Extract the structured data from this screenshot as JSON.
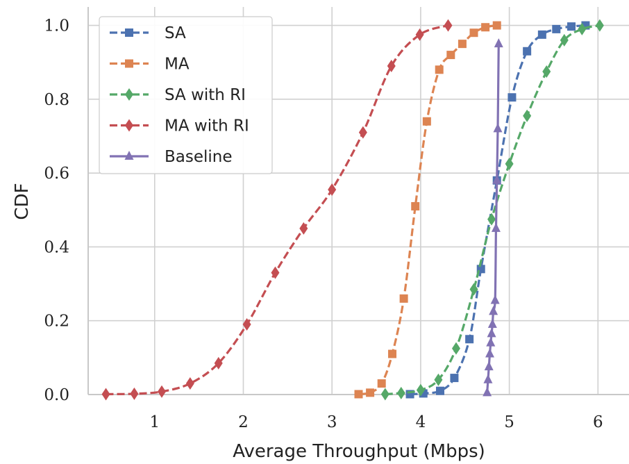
{
  "chart_data": {
    "type": "line",
    "xlabel": "Average Throughput (Mbps)",
    "ylabel": "CDF",
    "xlim": [
      0.25,
      6.35
    ],
    "ylim": [
      0.0,
      1.05
    ],
    "x_ticks": [
      1,
      2,
      3,
      4,
      5,
      6
    ],
    "y_ticks": [
      0.0,
      0.2,
      0.4,
      0.6,
      0.8,
      1.0
    ],
    "x_tick_labels": [
      "1",
      "2",
      "3",
      "4",
      "5",
      "6"
    ],
    "y_tick_labels": [
      "0.0",
      "0.2",
      "0.4",
      "0.6",
      "0.8",
      "1.0"
    ],
    "grid": true,
    "legend_position": "top-left",
    "series": [
      {
        "name": "SA",
        "color": "#4c72b0",
        "dash": true,
        "marker": "square",
        "x": [
          3.88,
          4.03,
          4.22,
          4.38,
          4.55,
          4.68,
          4.86,
          5.03,
          5.2,
          5.37,
          5.53,
          5.7,
          5.86
        ],
        "y": [
          0.001,
          0.003,
          0.01,
          0.045,
          0.15,
          0.34,
          0.58,
          0.805,
          0.93,
          0.975,
          0.99,
          0.997,
          1.0
        ]
      },
      {
        "name": "MA",
        "color": "#dd8452",
        "dash": true,
        "marker": "square",
        "x": [
          3.3,
          3.43,
          3.56,
          3.68,
          3.81,
          3.94,
          4.07,
          4.21,
          4.34,
          4.47,
          4.6,
          4.73,
          4.86
        ],
        "y": [
          0.001,
          0.005,
          0.03,
          0.11,
          0.26,
          0.51,
          0.74,
          0.88,
          0.92,
          0.95,
          0.98,
          0.995,
          1.0
        ]
      },
      {
        "name": "SA with RI",
        "color": "#55a868",
        "dash": true,
        "marker": "diamond",
        "x": [
          3.6,
          3.78,
          4.0,
          4.2,
          4.4,
          4.6,
          4.8,
          5.0,
          5.2,
          5.42,
          5.62,
          5.82,
          6.02
        ],
        "y": [
          0.001,
          0.004,
          0.012,
          0.04,
          0.125,
          0.285,
          0.475,
          0.625,
          0.755,
          0.875,
          0.96,
          0.99,
          1.0
        ]
      },
      {
        "name": "MA with RI",
        "color": "#c44e52",
        "dash": true,
        "marker": "diamond",
        "x": [
          0.45,
          0.77,
          1.08,
          1.4,
          1.72,
          2.04,
          2.36,
          2.68,
          3.0,
          3.35,
          3.67,
          3.99,
          4.31
        ],
        "y": [
          0.001,
          0.002,
          0.008,
          0.03,
          0.085,
          0.19,
          0.33,
          0.45,
          0.555,
          0.71,
          0.89,
          0.975,
          1.0
        ]
      },
      {
        "name": "Baseline",
        "color": "#8172b3",
        "dash": false,
        "marker": "triangle",
        "x": [
          4.75,
          4.76,
          4.77,
          4.78,
          4.79,
          4.8,
          4.81,
          4.82,
          4.84,
          4.85,
          4.86,
          4.87,
          4.88
        ],
        "y": [
          0.005,
          0.04,
          0.075,
          0.11,
          0.14,
          0.165,
          0.19,
          0.225,
          0.255,
          0.45,
          0.58,
          0.72,
          0.95
        ]
      }
    ]
  }
}
